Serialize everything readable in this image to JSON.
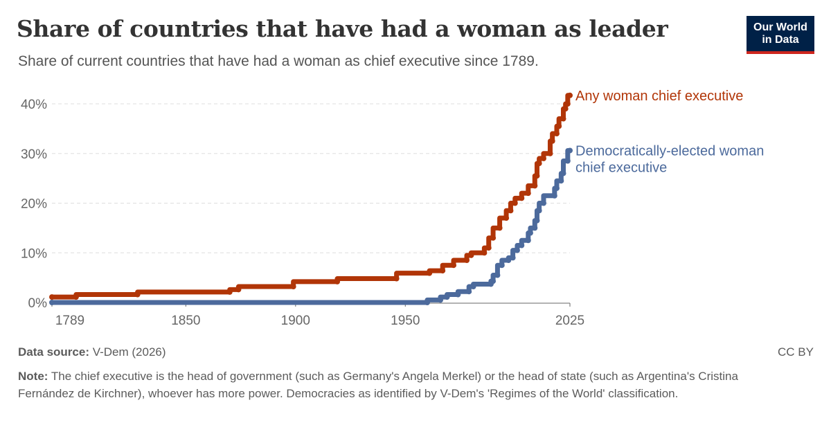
{
  "header": {
    "title": "Share of countries that have had a woman as leader",
    "subtitle": "Share of current countries that have had a woman as chief executive since 1789."
  },
  "logo": {
    "line1": "Our World",
    "line2": "in Data"
  },
  "footer": {
    "source_label": "Data source:",
    "source_value": "V-Dem (2026)",
    "license": "CC BY",
    "note_label": "Note:",
    "note_text": "The chief executive is the head of government (such as Germany's Angela Merkel) or the head of state (such as Argentina's Cristina Fernández de Kirchner), whoever has more power. Democracies as identified by V-Dem's 'Regimes of the World' classification."
  },
  "colors": {
    "any": "#b13507",
    "democratic": "#4c6a9c",
    "grid": "#dddddd",
    "axis": "#666666"
  },
  "chart_data": {
    "type": "line",
    "xlim": [
      1789,
      2025
    ],
    "ylim": [
      0,
      40
    ],
    "x_ticks": [
      1789,
      1850,
      1900,
      1950,
      2025
    ],
    "x_tick_labels": [
      "1789",
      "1850",
      "1900",
      "1950",
      "2025"
    ],
    "y_ticks": [
      0,
      10,
      20,
      30,
      40
    ],
    "y_tick_labels": [
      "0%",
      "10%",
      "20%",
      "30%",
      "40%"
    ],
    "grid": "horizontal dashed",
    "series": [
      {
        "name": "Any woman chief executive",
        "label_lines": [
          "Any woman chief executive"
        ],
        "color": "#b13507",
        "points": [
          [
            1789,
            1.1
          ],
          [
            1800,
            1.1
          ],
          [
            1800,
            1.6
          ],
          [
            1828,
            1.6
          ],
          [
            1828,
            2.1
          ],
          [
            1870,
            2.1
          ],
          [
            1870,
            2.6
          ],
          [
            1874,
            2.6
          ],
          [
            1874,
            3.2
          ],
          [
            1899,
            3.2
          ],
          [
            1899,
            4.2
          ],
          [
            1919,
            4.2
          ],
          [
            1919,
            4.8
          ],
          [
            1946,
            4.8
          ],
          [
            1946,
            5.9
          ],
          [
            1961,
            5.9
          ],
          [
            1961,
            6.4
          ],
          [
            1967,
            6.4
          ],
          [
            1967,
            7.5
          ],
          [
            1972,
            7.5
          ],
          [
            1972,
            8.5
          ],
          [
            1978,
            8.5
          ],
          [
            1978,
            9.5
          ],
          [
            1980,
            9.5
          ],
          [
            1980,
            10
          ],
          [
            1986,
            10
          ],
          [
            1986,
            11
          ],
          [
            1988,
            11
          ],
          [
            1988,
            13
          ],
          [
            1990,
            13
          ],
          [
            1990,
            15
          ],
          [
            1993,
            15
          ],
          [
            1993,
            17
          ],
          [
            1996,
            17
          ],
          [
            1996,
            18.5
          ],
          [
            1998,
            18.5
          ],
          [
            1998,
            20
          ],
          [
            2000,
            20
          ],
          [
            2000,
            21
          ],
          [
            2003,
            21
          ],
          [
            2003,
            22
          ],
          [
            2006,
            22
          ],
          [
            2006,
            23.5
          ],
          [
            2009,
            23.5
          ],
          [
            2009,
            25.5
          ],
          [
            2010,
            25.5
          ],
          [
            2010,
            28
          ],
          [
            2011,
            28
          ],
          [
            2011,
            29
          ],
          [
            2013,
            29
          ],
          [
            2013,
            30
          ],
          [
            2016,
            30
          ],
          [
            2016,
            32.5
          ],
          [
            2017,
            32.5
          ],
          [
            2017,
            34
          ],
          [
            2019,
            34
          ],
          [
            2019,
            35.5
          ],
          [
            2020,
            35.5
          ],
          [
            2020,
            37
          ],
          [
            2022,
            37
          ],
          [
            2022,
            39
          ],
          [
            2023,
            39
          ],
          [
            2023,
            40
          ],
          [
            2024,
            40
          ],
          [
            2024,
            41.7
          ],
          [
            2025,
            41.7
          ]
        ]
      },
      {
        "name": "Democratically-elected woman chief executive",
        "label_lines": [
          "Democratically-elected woman",
          "chief executive"
        ],
        "color": "#4c6a9c",
        "points": [
          [
            1789,
            0
          ],
          [
            1960,
            0
          ],
          [
            1960,
            0.5
          ],
          [
            1966,
            0.5
          ],
          [
            1966,
            1.1
          ],
          [
            1969,
            1.1
          ],
          [
            1969,
            1.6
          ],
          [
            1974,
            1.6
          ],
          [
            1974,
            2.2
          ],
          [
            1979,
            2.2
          ],
          [
            1979,
            3.2
          ],
          [
            1981,
            3.2
          ],
          [
            1981,
            3.7
          ],
          [
            1989,
            3.7
          ],
          [
            1989,
            4.3
          ],
          [
            1990,
            4.3
          ],
          [
            1990,
            5.5
          ],
          [
            1992,
            5.5
          ],
          [
            1992,
            7.5
          ],
          [
            1994,
            7.5
          ],
          [
            1994,
            8.5
          ],
          [
            1997,
            8.5
          ],
          [
            1997,
            9
          ],
          [
            1999,
            9
          ],
          [
            1999,
            10.5
          ],
          [
            2001,
            10.5
          ],
          [
            2001,
            11.5
          ],
          [
            2003,
            11.5
          ],
          [
            2003,
            12.5
          ],
          [
            2006,
            12.5
          ],
          [
            2006,
            14
          ],
          [
            2007,
            14
          ],
          [
            2007,
            15
          ],
          [
            2009,
            15
          ],
          [
            2009,
            16.5
          ],
          [
            2010,
            16.5
          ],
          [
            2010,
            18.5
          ],
          [
            2011,
            18.5
          ],
          [
            2011,
            20
          ],
          [
            2013,
            20
          ],
          [
            2013,
            21.5
          ],
          [
            2018,
            21.5
          ],
          [
            2018,
            23
          ],
          [
            2019,
            23
          ],
          [
            2019,
            24.5
          ],
          [
            2021,
            24.5
          ],
          [
            2021,
            26
          ],
          [
            2022,
            26
          ],
          [
            2022,
            28.5
          ],
          [
            2024,
            28.5
          ],
          [
            2024,
            30.6
          ],
          [
            2025,
            30.6
          ]
        ]
      }
    ]
  }
}
